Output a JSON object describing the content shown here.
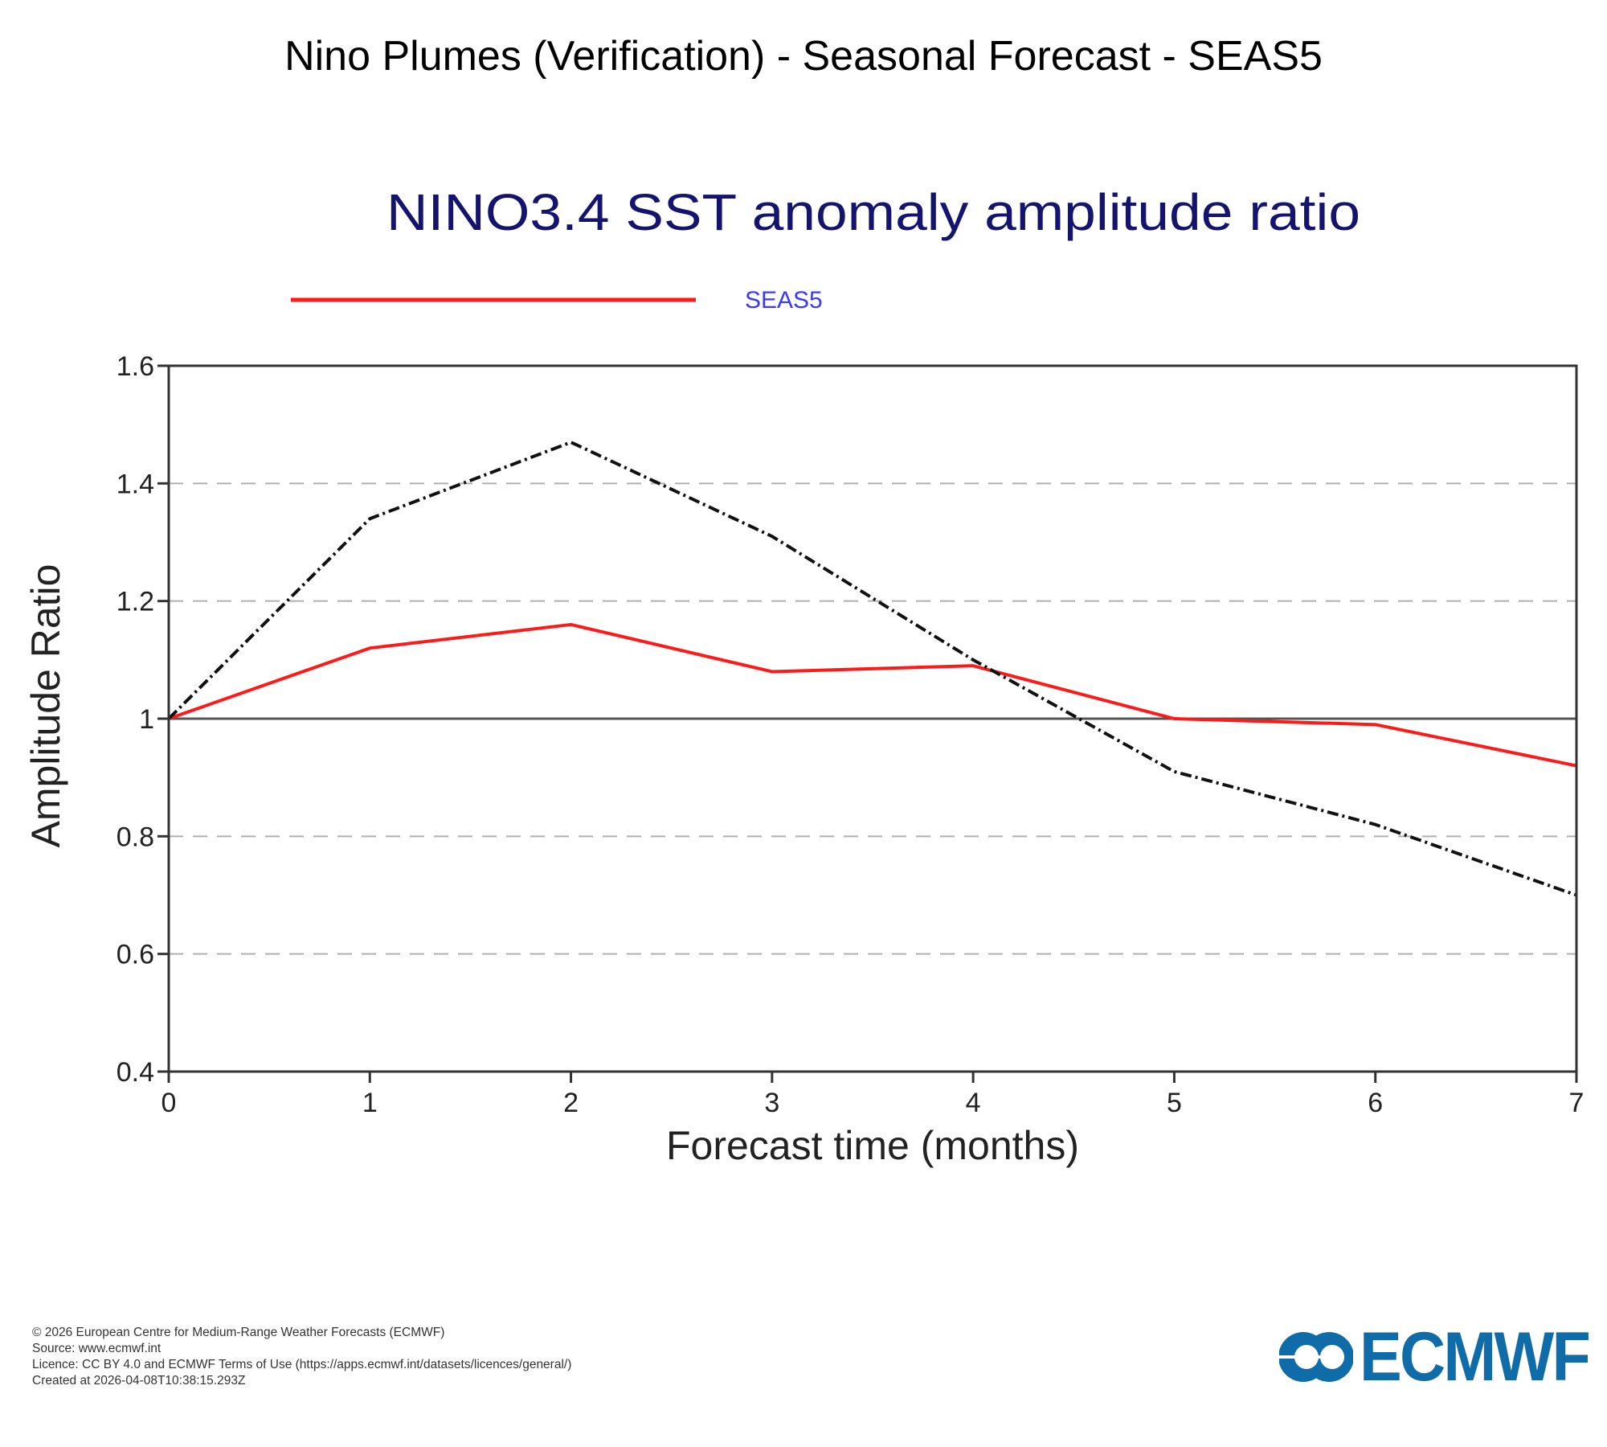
{
  "page": {
    "title": "Nino Plumes (Verification) - Seasonal Forecast - SEAS5"
  },
  "chart_data": {
    "type": "line",
    "title": "NINO3.4 SST anomaly amplitude ratio",
    "xlabel": "Forecast time (months)",
    "ylabel": "Amplitude Ratio",
    "x": [
      0,
      1,
      2,
      3,
      4,
      5,
      6,
      7
    ],
    "xlim": [
      0,
      7
    ],
    "ylim": [
      0.4,
      1.6
    ],
    "xticks": [
      "0",
      "1",
      "2",
      "3",
      "4",
      "5",
      "6",
      "7"
    ],
    "yticks": [
      {
        "value": 0.4,
        "label": "0.4"
      },
      {
        "value": 0.6,
        "label": "0.6"
      },
      {
        "value": 0.8,
        "label": "0.8"
      },
      {
        "value": 1.0,
        "label": "1"
      },
      {
        "value": 1.2,
        "label": "1.2"
      },
      {
        "value": 1.4,
        "label": "1.4"
      },
      {
        "value": 1.6,
        "label": "1.6"
      }
    ],
    "grid": "horizontal dashed",
    "reference_line": 1.0,
    "legend_position": "top-left",
    "series": [
      {
        "name": "SEAS5",
        "color": "#ff1a1a",
        "style": "solid",
        "in_legend": true,
        "values": [
          1.0,
          1.12,
          1.16,
          1.08,
          1.09,
          1.0,
          0.99,
          0.92
        ]
      },
      {
        "name": "",
        "color": "#111111",
        "style": "dash-dot",
        "in_legend": false,
        "values": [
          1.0,
          1.34,
          1.47,
          1.31,
          1.1,
          0.91,
          0.82,
          0.7
        ]
      }
    ]
  },
  "footer": {
    "lines": [
      "© 2026 European Centre for Medium-Range Weather Forecasts (ECMWF)",
      "Source: www.ecmwf.int",
      "Licence: CC BY 4.0 and ECMWF Terms of Use (https://apps.ecmwf.int/datasets/licences/general/)",
      "Created at 2026-04-08T10:38:15.293Z"
    ]
  },
  "logo": {
    "text": "ECMWF",
    "icon": "ecmwf-logo-icon",
    "color": "#0f6ca8"
  },
  "colors": {
    "chart_title": "#14146e",
    "legend_label": "#3a3aff",
    "axis": "#333333",
    "grid": "#b0b0b0"
  }
}
